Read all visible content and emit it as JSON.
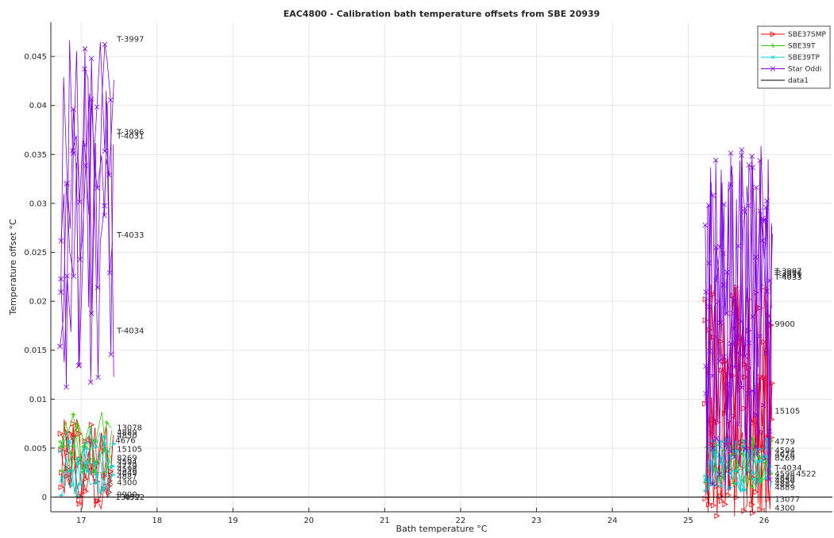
{
  "chart_data": {
    "type": "line",
    "title": "EAC4800 - Calibration bath temperature offsets from SBE 20939",
    "xlabel": "Bath temperature °C",
    "ylabel": "Temperature offset °C",
    "xlim": [
      16.6,
      26.9
    ],
    "ylim": [
      -0.0015,
      0.0485
    ],
    "xticks": [
      17,
      18,
      19,
      20,
      21,
      22,
      23,
      24,
      25,
      26
    ],
    "yticks": [
      0,
      0.005,
      0.01,
      0.015,
      0.02,
      0.025,
      0.03,
      0.035,
      0.04,
      0.045
    ],
    "grid": true,
    "legend_position": "top-right",
    "series": [
      {
        "name": "SBE37SMP",
        "color": "#ff0000",
        "marker": "triangle-right",
        "clusters": [
          {
            "x": [
              16.72,
              17.45
            ],
            "y_lo": -0.0012,
            "y_hi": 0.008,
            "n": 70
          },
          {
            "x": [
              25.22,
              26.12
            ],
            "y_lo": -0.002,
            "y_hi": 0.022,
            "n": 140
          }
        ]
      },
      {
        "name": "SBE39T",
        "color": "#33cc00",
        "marker": "asterisk",
        "clusters": [
          {
            "x": [
              16.72,
              17.45
            ],
            "y_lo": 0.0025,
            "y_hi": 0.009,
            "n": 40
          },
          {
            "x": [
              25.22,
              26.12
            ],
            "y_lo": 0.001,
            "y_hi": 0.006,
            "n": 60
          }
        ]
      },
      {
        "name": "SBE39TP",
        "color": "#00d2d2",
        "marker": "star",
        "clusters": [
          {
            "x": [
              16.72,
              17.45
            ],
            "y_lo": 0.0,
            "y_hi": 0.0075,
            "n": 50
          },
          {
            "x": [
              25.22,
              26.12
            ],
            "y_lo": 0.0005,
            "y_hi": 0.0065,
            "n": 70
          }
        ]
      },
      {
        "name": "Star Oddi",
        "color": "#7f00e6",
        "marker": "x",
        "clusters": [
          {
            "x": [
              16.72,
              17.45
            ],
            "y_lo": 0.0085,
            "y_hi": 0.0475,
            "n": 70
          },
          {
            "x": [
              25.22,
              26.12
            ],
            "y_lo": 0.0,
            "y_hi": 0.036,
            "n": 150
          }
        ]
      },
      {
        "name": "data1",
        "color": "#000000",
        "marker": "none",
        "x": [
          16.6,
          26.9
        ],
        "y": [
          0,
          0
        ]
      }
    ],
    "annotations": [
      {
        "text": "T-3997",
        "x": 17.47,
        "y": 0.0468
      },
      {
        "text": "T-3996",
        "x": 17.47,
        "y": 0.0373
      },
      {
        "text": "T-4031",
        "x": 17.47,
        "y": 0.0369
      },
      {
        "text": "T-4033",
        "x": 17.47,
        "y": 0.0268
      },
      {
        "text": "T-4034",
        "x": 17.47,
        "y": 0.017
      },
      {
        "text": "13078",
        "x": 17.47,
        "y": 0.0071
      },
      {
        "text": "4889",
        "x": 17.47,
        "y": 0.0066
      },
      {
        "text": "4850",
        "x": 17.47,
        "y": 0.0063
      },
      {
        "text": "4676",
        "x": 17.45,
        "y": 0.0058
      },
      {
        "text": "15105",
        "x": 17.47,
        "y": 0.0049
      },
      {
        "text": "8269",
        "x": 17.47,
        "y": 0.004
      },
      {
        "text": "4594",
        "x": 17.47,
        "y": 0.0036
      },
      {
        "text": "4779",
        "x": 17.47,
        "y": 0.0032
      },
      {
        "text": "4598",
        "x": 17.47,
        "y": 0.0029
      },
      {
        "text": "4849",
        "x": 17.47,
        "y": 0.0025
      },
      {
        "text": "4887",
        "x": 17.47,
        "y": 0.0021
      },
      {
        "text": "4300",
        "x": 17.47,
        "y": 0.0015
      },
      {
        "text": "9900",
        "x": 17.47,
        "y": 0.0003
      },
      {
        "text": "13077",
        "x": 17.45,
        "y": 0.0
      },
      {
        "text": "4522",
        "x": 17.57,
        "y": 0.0
      },
      {
        "text": "T-3997",
        "x": 26.14,
        "y": 0.0231
      },
      {
        "text": "T-3996",
        "x": 26.14,
        "y": 0.0229
      },
      {
        "text": "T-4031",
        "x": 26.14,
        "y": 0.0227
      },
      {
        "text": "T-4033",
        "x": 26.14,
        "y": 0.0225
      },
      {
        "text": "9900",
        "x": 26.14,
        "y": 0.0177
      },
      {
        "text": "15105",
        "x": 26.14,
        "y": 0.0088
      },
      {
        "text": "4779",
        "x": 26.14,
        "y": 0.0057
      },
      {
        "text": "4594",
        "x": 26.14,
        "y": 0.0048
      },
      {
        "text": "4676",
        "x": 26.14,
        "y": 0.0044
      },
      {
        "text": "8269",
        "x": 26.14,
        "y": 0.004
      },
      {
        "text": "T-4034",
        "x": 26.14,
        "y": 0.003
      },
      {
        "text": "4598",
        "x": 26.14,
        "y": 0.0024
      },
      {
        "text": "4522",
        "x": 26.42,
        "y": 0.0024
      },
      {
        "text": "4849",
        "x": 26.14,
        "y": 0.002
      },
      {
        "text": "4850",
        "x": 26.14,
        "y": 0.0017
      },
      {
        "text": "4887",
        "x": 26.14,
        "y": 0.0014
      },
      {
        "text": "4889",
        "x": 26.14,
        "y": 0.001
      },
      {
        "text": "13077",
        "x": 26.14,
        "y": -0.0002
      },
      {
        "text": "4300",
        "x": 26.14,
        "y": -0.0011
      }
    ]
  }
}
